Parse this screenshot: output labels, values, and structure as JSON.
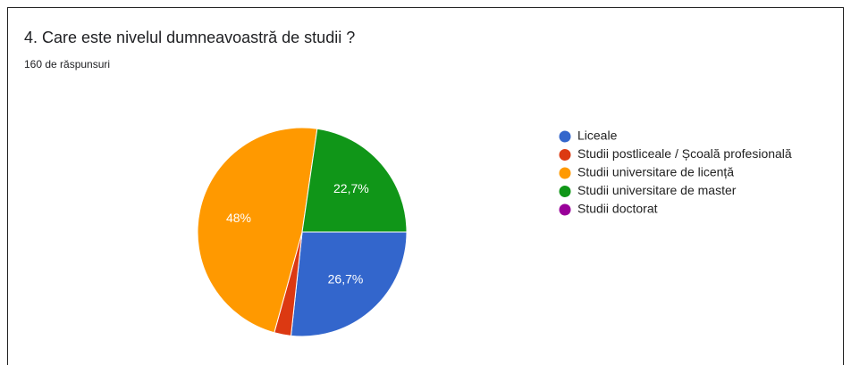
{
  "chart_data": {
    "type": "pie",
    "title": "4. Care este nivelul dumneavoastră de studii ?",
    "subtitle": "160 de răspunsuri",
    "categories": [
      "Liceale",
      "Studii postliceale / Școală profesională",
      "Studii universitare de licență",
      "Studii universitare de master",
      "Studii doctorat"
    ],
    "values": [
      26.7,
      2.6,
      48,
      22.7,
      0
    ],
    "value_labels": [
      "26,7%",
      null,
      "48%",
      "22,7%",
      null
    ],
    "colors": [
      "#3366cc",
      "#dc3912",
      "#ff9900",
      "#109618",
      "#990099"
    ],
    "legend": "right"
  }
}
